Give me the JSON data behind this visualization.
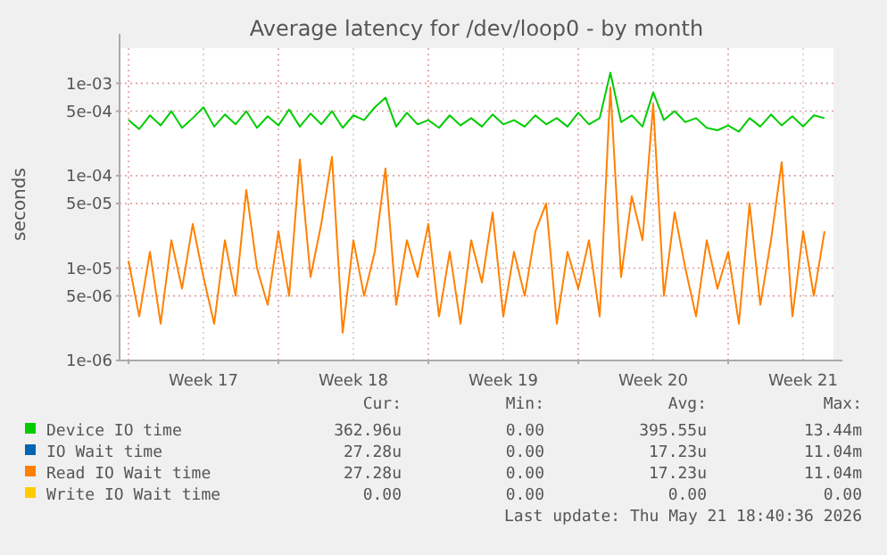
{
  "chart_data": {
    "type": "line",
    "title": "Average latency for /dev/loop0 - by month",
    "ylabel": "seconds",
    "log": "y",
    "grid": true,
    "legend": "bottom",
    "marker": "none",
    "line_style": "solid",
    "xlim": [
      "2026-04-19T14:00",
      "2026-05-22T22:00"
    ],
    "ylim": [
      1e-06,
      0.0024
    ],
    "yticks": [
      {
        "value": 1e-06,
        "label": "1e-06"
      },
      {
        "value": 5e-06,
        "label": "5e-06"
      },
      {
        "value": 1e-05,
        "label": "1e-05"
      },
      {
        "value": 5e-05,
        "label": "5e-05"
      },
      {
        "value": 0.0001,
        "label": "1e-04"
      },
      {
        "value": 0.0005,
        "label": "5e-04"
      },
      {
        "value": 0.001,
        "label": "1e-03"
      }
    ],
    "xticks": [
      {
        "value": "2026-04-20",
        "label": null
      },
      {
        "value": "2026-04-23T12:00",
        "label": "Week 17"
      },
      {
        "value": "2026-04-27",
        "label": null
      },
      {
        "value": "2026-04-30T12:00",
        "label": "Week 18"
      },
      {
        "value": "2026-05-04",
        "label": null
      },
      {
        "value": "2026-05-07T12:00",
        "label": "Week 19"
      },
      {
        "value": "2026-05-11",
        "label": null
      },
      {
        "value": "2026-05-14T12:00",
        "label": "Week 20"
      },
      {
        "value": "2026-05-18",
        "label": null
      },
      {
        "value": "2026-05-21T12:00",
        "label": "Week 21"
      }
    ],
    "x": [
      "2026-04-20T00:00",
      "2026-04-20T12:00",
      "2026-04-21T00:00",
      "2026-04-21T12:00",
      "2026-04-22T00:00",
      "2026-04-22T12:00",
      "2026-04-23T00:00",
      "2026-04-23T12:00",
      "2026-04-24T00:00",
      "2026-04-24T12:00",
      "2026-04-25T00:00",
      "2026-04-25T12:00",
      "2026-04-26T00:00",
      "2026-04-26T12:00",
      "2026-04-27T00:00",
      "2026-04-27T12:00",
      "2026-04-28T00:00",
      "2026-04-28T12:00",
      "2026-04-29T00:00",
      "2026-04-29T12:00",
      "2026-04-30T00:00",
      "2026-04-30T12:00",
      "2026-05-01T00:00",
      "2026-05-01T12:00",
      "2026-05-02T00:00",
      "2026-05-02T12:00",
      "2026-05-03T00:00",
      "2026-05-03T12:00",
      "2026-05-04T00:00",
      "2026-05-04T12:00",
      "2026-05-05T00:00",
      "2026-05-05T12:00",
      "2026-05-06T00:00",
      "2026-05-06T12:00",
      "2026-05-07T00:00",
      "2026-05-07T12:00",
      "2026-05-08T00:00",
      "2026-05-08T12:00",
      "2026-05-09T00:00",
      "2026-05-09T12:00",
      "2026-05-10T00:00",
      "2026-05-10T12:00",
      "2026-05-11T00:00",
      "2026-05-11T12:00",
      "2026-05-12T00:00",
      "2026-05-12T12:00",
      "2026-05-13T00:00",
      "2026-05-13T12:00",
      "2026-05-14T00:00",
      "2026-05-14T12:00",
      "2026-05-15T00:00",
      "2026-05-15T12:00",
      "2026-05-16T00:00",
      "2026-05-16T12:00",
      "2026-05-17T00:00",
      "2026-05-17T12:00",
      "2026-05-18T00:00",
      "2026-05-18T12:00",
      "2026-05-19T00:00",
      "2026-05-19T12:00",
      "2026-05-20T00:00",
      "2026-05-20T12:00",
      "2026-05-21T00:00",
      "2026-05-21T12:00",
      "2026-05-22T00:00",
      "2026-05-22T12:00"
    ],
    "series": [
      {
        "name": "Device IO time",
        "color": "#00cc00",
        "values": [
          0.0004,
          0.00032,
          0.00045,
          0.00035,
          0.0005,
          0.00033,
          0.00042,
          0.00055,
          0.00034,
          0.00046,
          0.00036,
          0.0005,
          0.00033,
          0.00044,
          0.00035,
          0.00052,
          0.00034,
          0.00047,
          0.00036,
          0.0005,
          0.00033,
          0.00045,
          0.0004,
          0.00055,
          0.0007,
          0.00034,
          0.00048,
          0.00036,
          0.0004,
          0.00033,
          0.00045,
          0.00035,
          0.00042,
          0.00034,
          0.00046,
          0.00036,
          0.0004,
          0.00034,
          0.00045,
          0.00036,
          0.00042,
          0.00034,
          0.00048,
          0.00036,
          0.00042,
          0.0013,
          0.00038,
          0.00045,
          0.00034,
          0.0008,
          0.0004,
          0.0005,
          0.00038,
          0.00042,
          0.00033,
          0.00031,
          0.00035,
          0.0003,
          0.00042,
          0.00034,
          0.00046,
          0.00035,
          0.00044,
          0.00034,
          0.00045,
          0.00042
        ]
      },
      {
        "name": "IO Wait time",
        "color": "#0066b3",
        "values": [
          null,
          null,
          null,
          null,
          null,
          null,
          null,
          null,
          null,
          null,
          null,
          null,
          null,
          null,
          null,
          null,
          null,
          null,
          null,
          null,
          null,
          null,
          null,
          null,
          null,
          null,
          null,
          null,
          null,
          null,
          null,
          null,
          null,
          null,
          null,
          null,
          null,
          null,
          null,
          null,
          null,
          null,
          null,
          null,
          null,
          null,
          null,
          null,
          null,
          null,
          null,
          null,
          null,
          null,
          null,
          null,
          null,
          null,
          null,
          null,
          null,
          null,
          null,
          null,
          null,
          null
        ]
      },
      {
        "name": "Read IO Wait time",
        "color": "#ff8000",
        "values": [
          1.2e-05,
          3e-06,
          1.5e-05,
          2.5e-06,
          2e-05,
          6e-06,
          3e-05,
          8e-06,
          2.5e-06,
          2e-05,
          5e-06,
          7e-05,
          1e-05,
          4e-06,
          2.5e-05,
          5e-06,
          0.00015,
          8e-06,
          3e-05,
          0.00016,
          2e-06,
          2e-05,
          5e-06,
          1.5e-05,
          0.00012,
          4e-06,
          2e-05,
          8e-06,
          3e-05,
          3e-06,
          1.5e-05,
          2.5e-06,
          2e-05,
          7e-06,
          4e-05,
          3e-06,
          1.5e-05,
          5e-06,
          2.5e-05,
          5e-05,
          2.5e-06,
          1.5e-05,
          6e-06,
          2e-05,
          3e-06,
          0.0009,
          8e-06,
          6e-05,
          2e-05,
          0.0006,
          5e-06,
          4e-05,
          1e-05,
          3e-06,
          2e-05,
          6e-06,
          1.5e-05,
          2.5e-06,
          5e-05,
          4e-06,
          2e-05,
          0.00014,
          3e-06,
          2.5e-05,
          5e-06,
          2.5e-05
        ]
      },
      {
        "name": "Write IO Wait time",
        "color": "#ffcc00",
        "values": [
          null,
          null,
          null,
          null,
          null,
          null,
          null,
          null,
          null,
          null,
          null,
          null,
          null,
          null,
          null,
          null,
          null,
          null,
          null,
          null,
          null,
          null,
          null,
          null,
          null,
          null,
          null,
          null,
          null,
          null,
          null,
          null,
          null,
          null,
          null,
          null,
          null,
          null,
          null,
          null,
          null,
          null,
          null,
          null,
          null,
          null,
          null,
          null,
          null,
          null,
          null,
          null,
          null,
          null,
          null,
          null,
          null,
          null,
          null,
          null,
          null,
          null,
          null,
          null,
          null,
          null
        ]
      }
    ],
    "annotations": [
      "Cur:",
      "Min:",
      "Avg:",
      "Max:",
      "362.96u",
      "0.00",
      "395.55u",
      "13.44m",
      "27.28u",
      "0.00",
      "17.23u",
      "11.04m",
      "27.28u",
      "0.00",
      "17.23u",
      "11.04m",
      "0.00",
      "0.00",
      "0.00",
      "0.00",
      "Last update: Thu May 21 18:40:36 2026"
    ]
  }
}
